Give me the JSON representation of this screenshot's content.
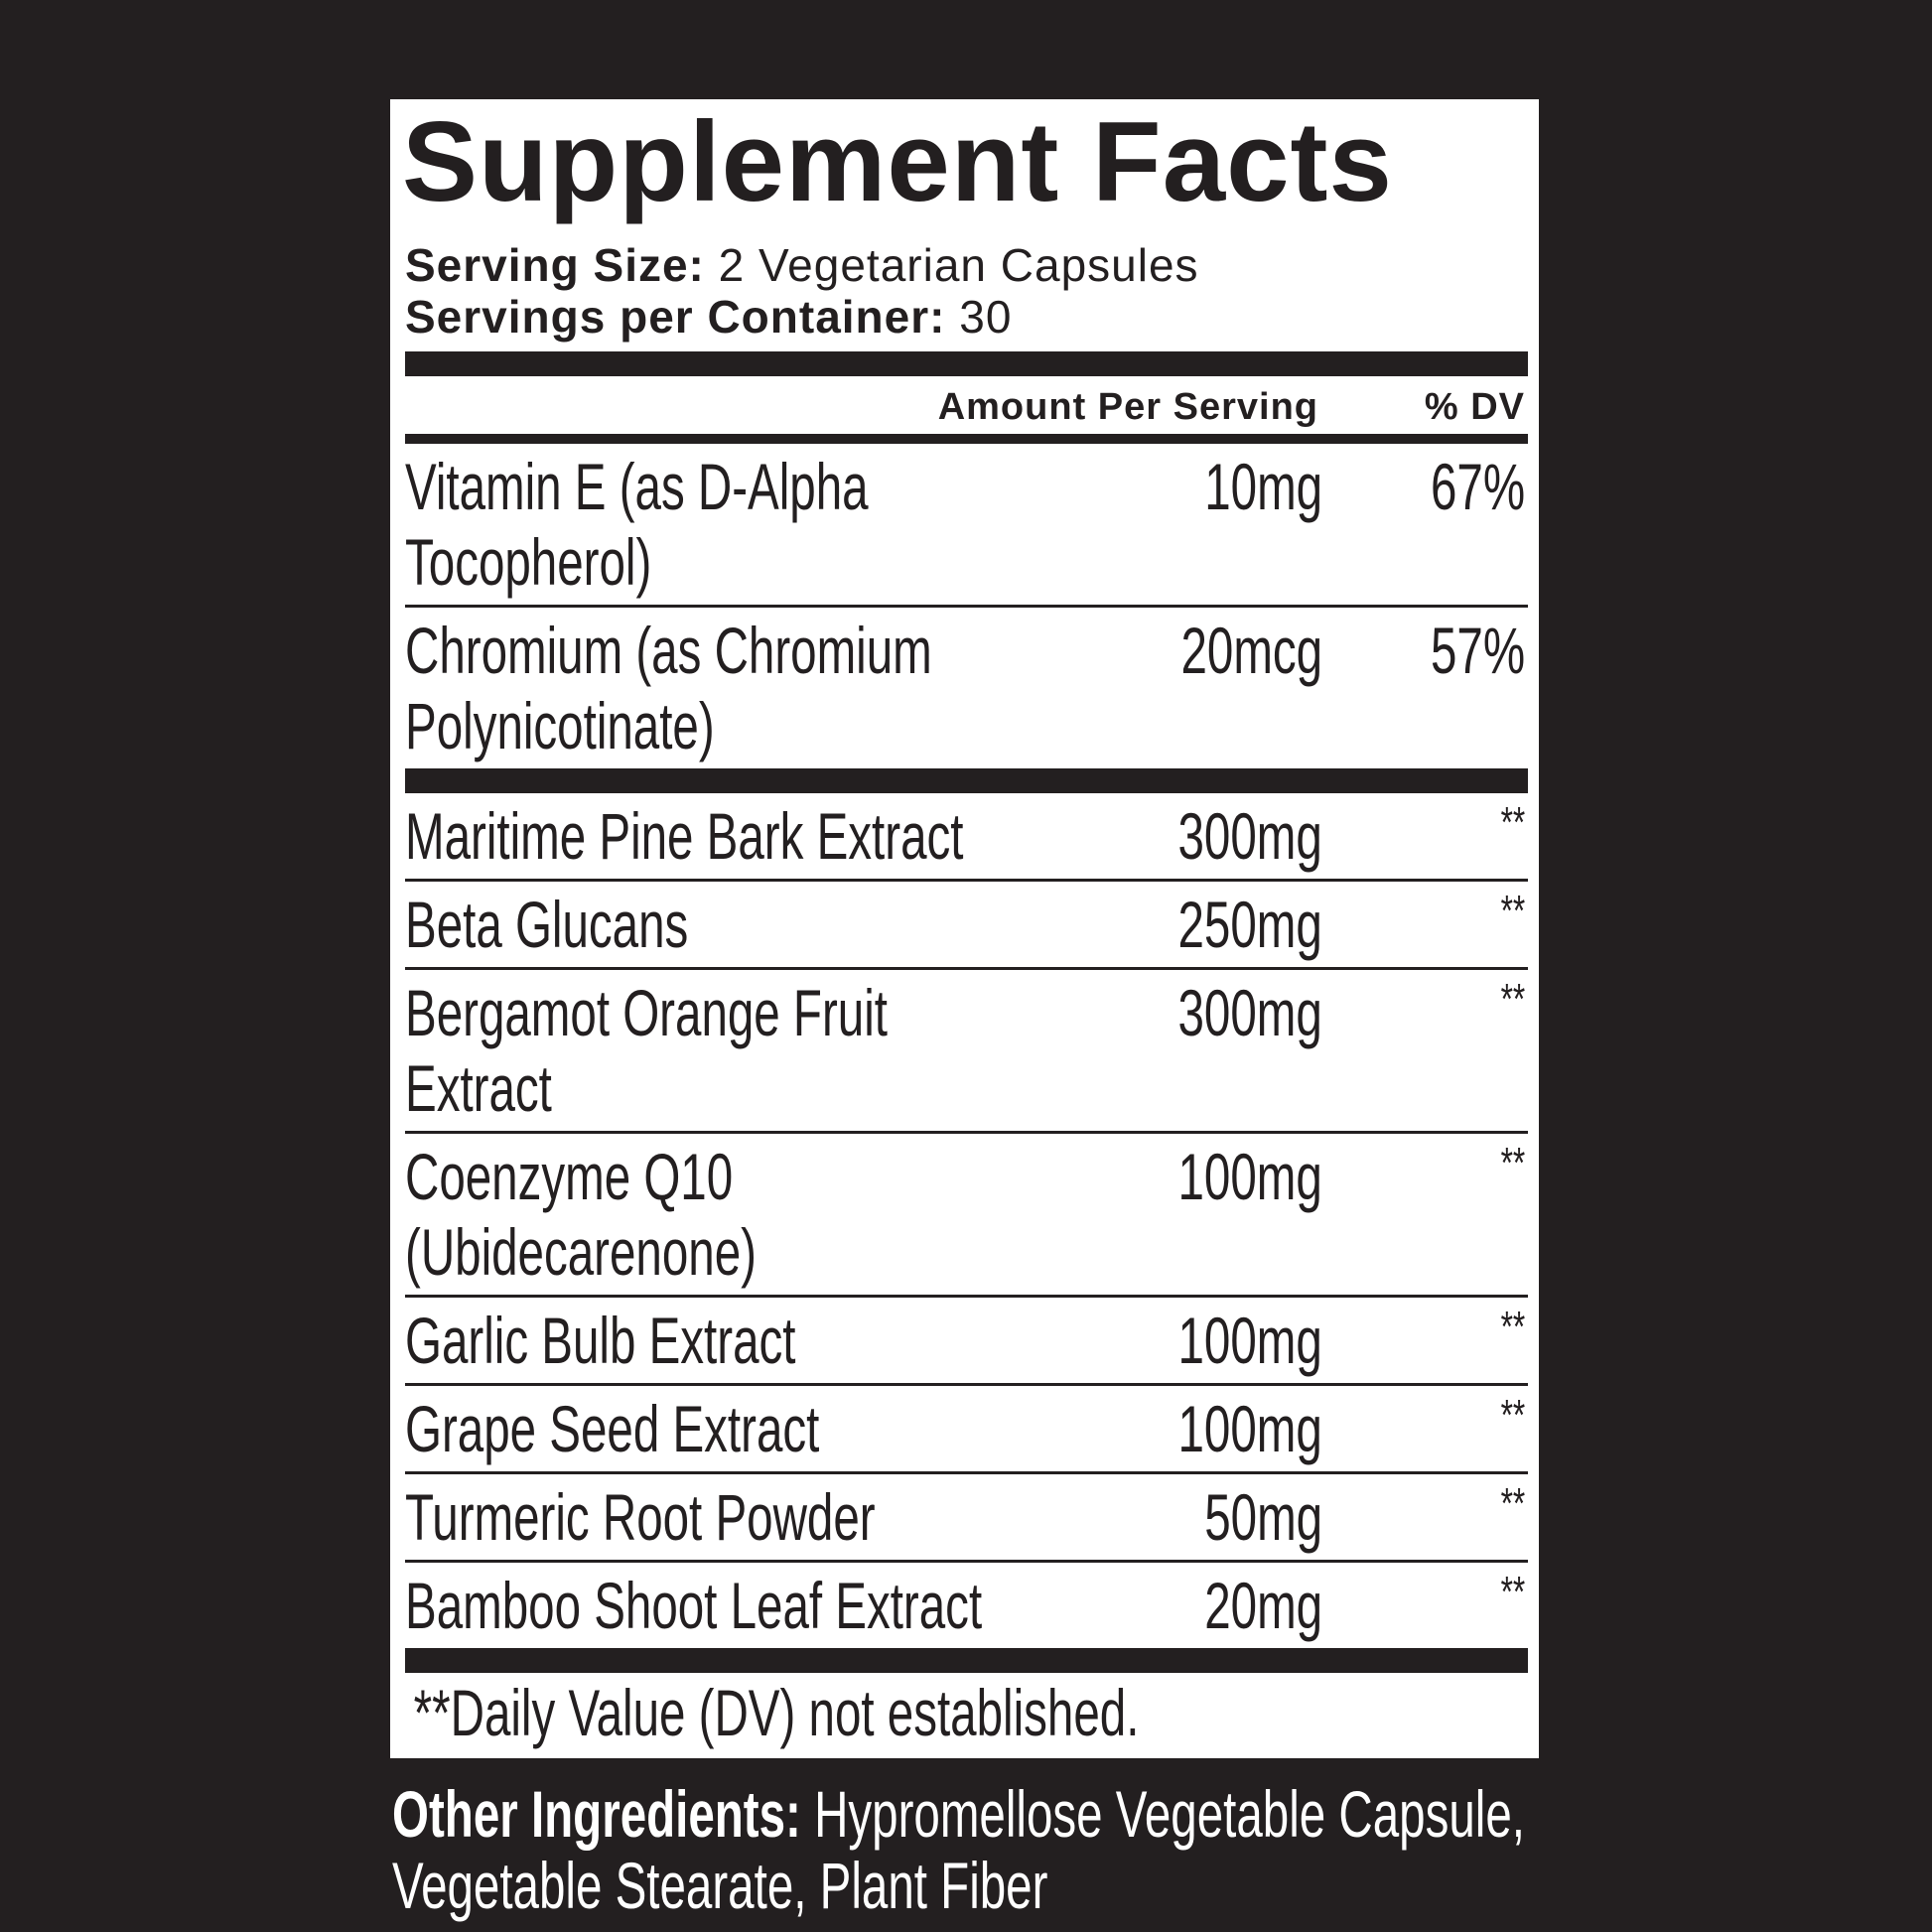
{
  "header": {
    "title": "Supplement Facts",
    "serving_size": {
      "label": "Serving Size:",
      "value": "2 Vegetarian Capsules"
    },
    "servings_per_container": {
      "label": "Servings per Container:",
      "value": "30"
    }
  },
  "table": {
    "columns": [
      "Amount Per Serving",
      "% DV"
    ],
    "sections": [
      [
        [
          "Vitamin E (as D-Alpha Tocopherol)",
          "10mg",
          "67%"
        ],
        [
          "Chromium (as Chromium Polynicotinate)",
          "20mcg",
          "57%"
        ]
      ],
      [
        [
          "Maritime Pine Bark Extract",
          "300mg",
          "**"
        ],
        [
          "Beta Glucans",
          "250mg",
          "**"
        ],
        [
          "Bergamot Orange Fruit Extract",
          "300mg",
          "**"
        ],
        [
          "Coenzyme Q10 (Ubidecarenone)",
          "100mg",
          "**"
        ],
        [
          "Garlic Bulb Extract",
          "100mg",
          "**"
        ],
        [
          "Grape Seed Extract",
          "100mg",
          "**"
        ],
        [
          "Turmeric Root Powder",
          "50mg",
          "**"
        ],
        [
          "Bamboo Shoot Leaf Extract",
          "20mg",
          "**"
        ]
      ]
    ]
  },
  "footnote": "**Daily Value (DV) not established.",
  "other_ingredients": {
    "label": "Other Ingredients:",
    "text": "Hypromellose Vegetable Capsule, Vegetable Stearate, Plant Fiber"
  }
}
